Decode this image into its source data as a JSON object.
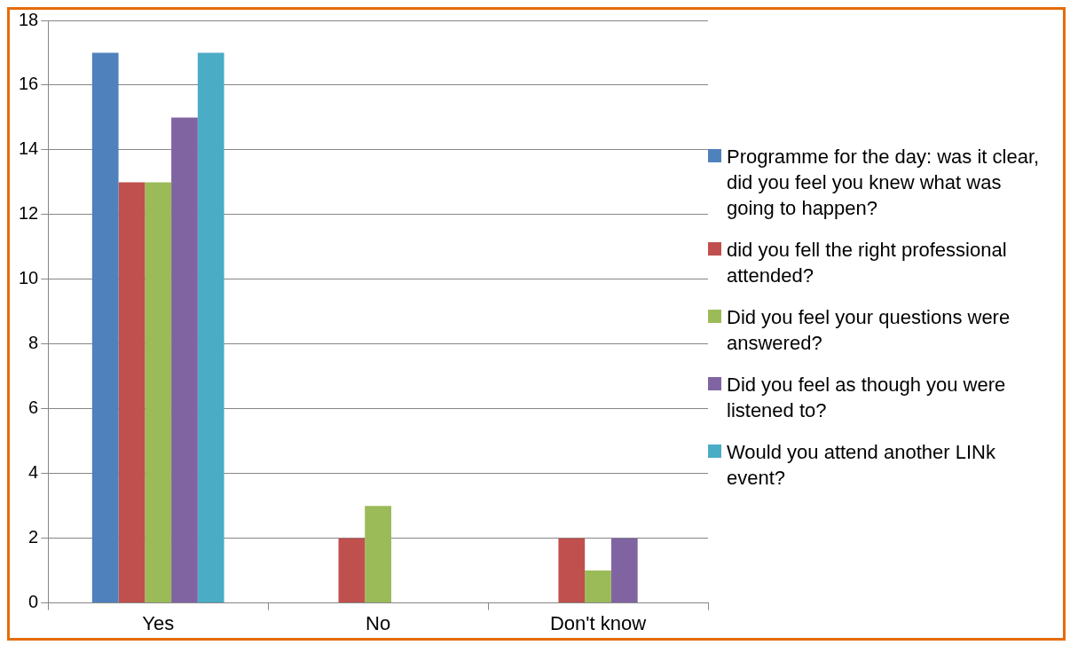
{
  "chart_data": {
    "type": "bar",
    "categories": [
      "Yes",
      "No",
      "Don't know"
    ],
    "series": [
      {
        "name": "Programme for the day: was it clear, did you feel you knew what was going to happen?",
        "color": "#4f81bd",
        "values": [
          17,
          0,
          0
        ]
      },
      {
        "name": "did you fell the right professional attended?",
        "color": "#c0504d",
        "values": [
          13,
          2,
          2
        ]
      },
      {
        "name": "Did you feel your questions were answered?",
        "color": "#9bbb59",
        "values": [
          13,
          3,
          1
        ]
      },
      {
        "name": "Did you feel as though you were listened to?",
        "color": "#8064a2",
        "values": [
          15,
          0,
          2
        ]
      },
      {
        "name": "Would you attend another LINk event?",
        "color": "#4bacc6",
        "values": [
          17,
          0,
          0
        ]
      }
    ],
    "ylim": [
      0,
      18
    ],
    "yticks": [
      0,
      2,
      4,
      6,
      8,
      10,
      12,
      14,
      16,
      18
    ],
    "grid": "y",
    "legend": "right"
  }
}
